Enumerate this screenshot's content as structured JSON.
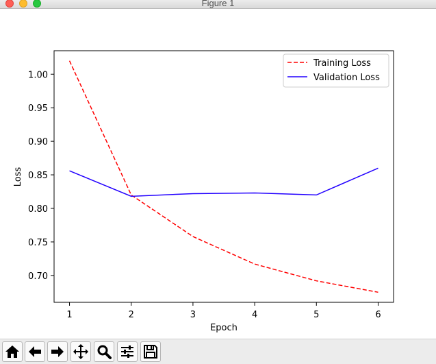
{
  "window": {
    "title": "Figure 1"
  },
  "toolbar": {
    "items": [
      {
        "name": "home",
        "icon": "home-icon"
      },
      {
        "name": "back",
        "icon": "arrow-left-icon"
      },
      {
        "name": "forward",
        "icon": "arrow-right-icon"
      },
      {
        "name": "pan",
        "icon": "move-icon"
      },
      {
        "name": "zoom",
        "icon": "magnifier-icon"
      },
      {
        "name": "configure-subplots",
        "icon": "sliders-icon"
      },
      {
        "name": "save",
        "icon": "floppy-disk-icon"
      }
    ]
  },
  "chart_data": {
    "type": "line",
    "x": [
      1,
      2,
      3,
      4,
      5,
      6
    ],
    "series": [
      {
        "name": "Training Loss",
        "values": [
          1.02,
          0.82,
          0.758,
          0.717,
          0.692,
          0.675
        ],
        "color": "#ff0000",
        "dash": "dashed"
      },
      {
        "name": "Validation Loss",
        "values": [
          0.856,
          0.818,
          0.822,
          0.823,
          0.82,
          0.86
        ],
        "color": "#2200ff",
        "dash": "solid"
      }
    ],
    "xlabel": "Epoch",
    "ylabel": "Loss",
    "xlim": [
      0.75,
      6.25
    ],
    "ylim": [
      0.66,
      1.035
    ],
    "xticks": [
      "1",
      "2",
      "3",
      "4",
      "5",
      "6"
    ],
    "yticks": [
      "0.70",
      "0.75",
      "0.80",
      "0.85",
      "0.90",
      "0.95",
      "1.00"
    ],
    "legend_position": "top-right",
    "grid": false
  }
}
